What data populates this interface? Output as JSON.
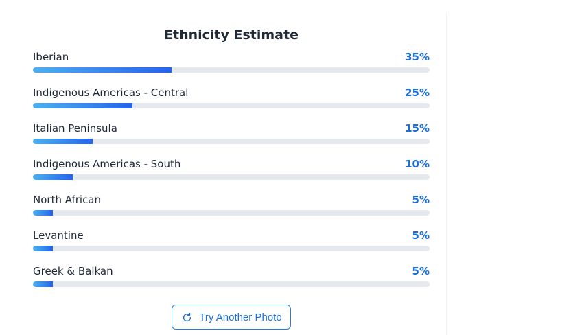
{
  "title": "Ethnicity Estimate",
  "items": [
    {
      "label": "Iberian",
      "percent_text": "35%",
      "fraction": 0.35
    },
    {
      "label": "Indigenous Americas - Central",
      "percent_text": "25%",
      "fraction": 0.25
    },
    {
      "label": "Italian Peninsula",
      "percent_text": "15%",
      "fraction": 0.15
    },
    {
      "label": "Indigenous Americas - South",
      "percent_text": "10%",
      "fraction": 0.1
    },
    {
      "label": "North African",
      "percent_text": "5%",
      "fraction": 0.05
    },
    {
      "label": "Levantine",
      "percent_text": "5%",
      "fraction": 0.05
    },
    {
      "label": "Greek & Balkan",
      "percent_text": "5%",
      "fraction": 0.05
    }
  ],
  "button": {
    "label": "Try Another Photo",
    "icon": "refresh-icon"
  },
  "colors": {
    "accent": "#1a6ed8",
    "bar_start": "#4cb0ef",
    "bar_end": "#2563eb",
    "track": "#e5e8ec"
  }
}
